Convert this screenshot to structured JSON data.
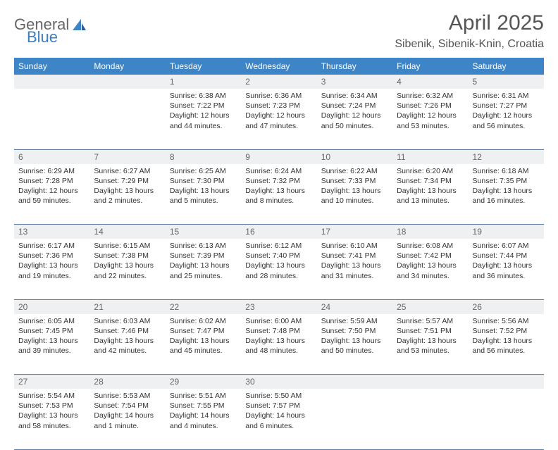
{
  "brand": {
    "part1": "General",
    "part2": "Blue"
  },
  "title": "April 2025",
  "location": "Sibenik, Sibenik-Knin, Croatia",
  "colors": {
    "header_bg": "#3d85c6",
    "header_text": "#ffffff",
    "daynum_bg": "#eef0f2",
    "cell_border": "#5b7ba3",
    "body_text": "#333333",
    "title_text": "#555555"
  },
  "fonts": {
    "title_size": 30,
    "location_size": 16,
    "header_size": 12,
    "cell_size": 10.5
  },
  "weekdays": [
    "Sunday",
    "Monday",
    "Tuesday",
    "Wednesday",
    "Thursday",
    "Friday",
    "Saturday"
  ],
  "weeks": [
    {
      "days": [
        {
          "num": "",
          "sunrise": "",
          "sunset": "",
          "daylight": ""
        },
        {
          "num": "",
          "sunrise": "",
          "sunset": "",
          "daylight": ""
        },
        {
          "num": "1",
          "sunrise": "Sunrise: 6:38 AM",
          "sunset": "Sunset: 7:22 PM",
          "daylight": "Daylight: 12 hours and 44 minutes."
        },
        {
          "num": "2",
          "sunrise": "Sunrise: 6:36 AM",
          "sunset": "Sunset: 7:23 PM",
          "daylight": "Daylight: 12 hours and 47 minutes."
        },
        {
          "num": "3",
          "sunrise": "Sunrise: 6:34 AM",
          "sunset": "Sunset: 7:24 PM",
          "daylight": "Daylight: 12 hours and 50 minutes."
        },
        {
          "num": "4",
          "sunrise": "Sunrise: 6:32 AM",
          "sunset": "Sunset: 7:26 PM",
          "daylight": "Daylight: 12 hours and 53 minutes."
        },
        {
          "num": "5",
          "sunrise": "Sunrise: 6:31 AM",
          "sunset": "Sunset: 7:27 PM",
          "daylight": "Daylight: 12 hours and 56 minutes."
        }
      ]
    },
    {
      "days": [
        {
          "num": "6",
          "sunrise": "Sunrise: 6:29 AM",
          "sunset": "Sunset: 7:28 PM",
          "daylight": "Daylight: 12 hours and 59 minutes."
        },
        {
          "num": "7",
          "sunrise": "Sunrise: 6:27 AM",
          "sunset": "Sunset: 7:29 PM",
          "daylight": "Daylight: 13 hours and 2 minutes."
        },
        {
          "num": "8",
          "sunrise": "Sunrise: 6:25 AM",
          "sunset": "Sunset: 7:30 PM",
          "daylight": "Daylight: 13 hours and 5 minutes."
        },
        {
          "num": "9",
          "sunrise": "Sunrise: 6:24 AM",
          "sunset": "Sunset: 7:32 PM",
          "daylight": "Daylight: 13 hours and 8 minutes."
        },
        {
          "num": "10",
          "sunrise": "Sunrise: 6:22 AM",
          "sunset": "Sunset: 7:33 PM",
          "daylight": "Daylight: 13 hours and 10 minutes."
        },
        {
          "num": "11",
          "sunrise": "Sunrise: 6:20 AM",
          "sunset": "Sunset: 7:34 PM",
          "daylight": "Daylight: 13 hours and 13 minutes."
        },
        {
          "num": "12",
          "sunrise": "Sunrise: 6:18 AM",
          "sunset": "Sunset: 7:35 PM",
          "daylight": "Daylight: 13 hours and 16 minutes."
        }
      ]
    },
    {
      "days": [
        {
          "num": "13",
          "sunrise": "Sunrise: 6:17 AM",
          "sunset": "Sunset: 7:36 PM",
          "daylight": "Daylight: 13 hours and 19 minutes."
        },
        {
          "num": "14",
          "sunrise": "Sunrise: 6:15 AM",
          "sunset": "Sunset: 7:38 PM",
          "daylight": "Daylight: 13 hours and 22 minutes."
        },
        {
          "num": "15",
          "sunrise": "Sunrise: 6:13 AM",
          "sunset": "Sunset: 7:39 PM",
          "daylight": "Daylight: 13 hours and 25 minutes."
        },
        {
          "num": "16",
          "sunrise": "Sunrise: 6:12 AM",
          "sunset": "Sunset: 7:40 PM",
          "daylight": "Daylight: 13 hours and 28 minutes."
        },
        {
          "num": "17",
          "sunrise": "Sunrise: 6:10 AM",
          "sunset": "Sunset: 7:41 PM",
          "daylight": "Daylight: 13 hours and 31 minutes."
        },
        {
          "num": "18",
          "sunrise": "Sunrise: 6:08 AM",
          "sunset": "Sunset: 7:42 PM",
          "daylight": "Daylight: 13 hours and 34 minutes."
        },
        {
          "num": "19",
          "sunrise": "Sunrise: 6:07 AM",
          "sunset": "Sunset: 7:44 PM",
          "daylight": "Daylight: 13 hours and 36 minutes."
        }
      ]
    },
    {
      "days": [
        {
          "num": "20",
          "sunrise": "Sunrise: 6:05 AM",
          "sunset": "Sunset: 7:45 PM",
          "daylight": "Daylight: 13 hours and 39 minutes."
        },
        {
          "num": "21",
          "sunrise": "Sunrise: 6:03 AM",
          "sunset": "Sunset: 7:46 PM",
          "daylight": "Daylight: 13 hours and 42 minutes."
        },
        {
          "num": "22",
          "sunrise": "Sunrise: 6:02 AM",
          "sunset": "Sunset: 7:47 PM",
          "daylight": "Daylight: 13 hours and 45 minutes."
        },
        {
          "num": "23",
          "sunrise": "Sunrise: 6:00 AM",
          "sunset": "Sunset: 7:48 PM",
          "daylight": "Daylight: 13 hours and 48 minutes."
        },
        {
          "num": "24",
          "sunrise": "Sunrise: 5:59 AM",
          "sunset": "Sunset: 7:50 PM",
          "daylight": "Daylight: 13 hours and 50 minutes."
        },
        {
          "num": "25",
          "sunrise": "Sunrise: 5:57 AM",
          "sunset": "Sunset: 7:51 PM",
          "daylight": "Daylight: 13 hours and 53 minutes."
        },
        {
          "num": "26",
          "sunrise": "Sunrise: 5:56 AM",
          "sunset": "Sunset: 7:52 PM",
          "daylight": "Daylight: 13 hours and 56 minutes."
        }
      ]
    },
    {
      "days": [
        {
          "num": "27",
          "sunrise": "Sunrise: 5:54 AM",
          "sunset": "Sunset: 7:53 PM",
          "daylight": "Daylight: 13 hours and 58 minutes."
        },
        {
          "num": "28",
          "sunrise": "Sunrise: 5:53 AM",
          "sunset": "Sunset: 7:54 PM",
          "daylight": "Daylight: 14 hours and 1 minute."
        },
        {
          "num": "29",
          "sunrise": "Sunrise: 5:51 AM",
          "sunset": "Sunset: 7:55 PM",
          "daylight": "Daylight: 14 hours and 4 minutes."
        },
        {
          "num": "30",
          "sunrise": "Sunrise: 5:50 AM",
          "sunset": "Sunset: 7:57 PM",
          "daylight": "Daylight: 14 hours and 6 minutes."
        },
        {
          "num": "",
          "sunrise": "",
          "sunset": "",
          "daylight": ""
        },
        {
          "num": "",
          "sunrise": "",
          "sunset": "",
          "daylight": ""
        },
        {
          "num": "",
          "sunrise": "",
          "sunset": "",
          "daylight": ""
        }
      ]
    }
  ]
}
